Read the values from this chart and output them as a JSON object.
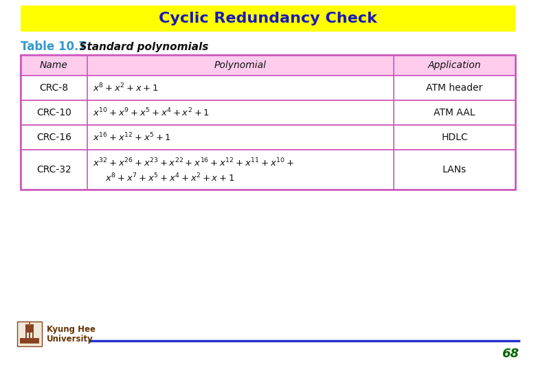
{
  "title": "Cyclic Redundancy Check",
  "title_color": "#1a1ab8",
  "title_bg": "#ffff00",
  "table_caption": "Table 10.7",
  "table_caption_color": "#3399cc",
  "table_subtitle": "  Standard polynomials",
  "header_bg": "#ffccee",
  "header_border": "#cc55bb",
  "names": [
    "CRC-8",
    "CRC-10",
    "CRC-16",
    "CRC-32"
  ],
  "poly_line1": [
    "$x^{8}+x^{2}+x+1$",
    "$x^{10}+x^{9}+x^{5}+x^{4}+x^{2}+1$",
    "$x^{16}+x^{12}+x^{5}+1$",
    "$x^{32}+x^{26}+x^{23}+x^{22}+x^{16}+x^{12}+x^{11}+x^{10}+$"
  ],
  "poly_line2": [
    "",
    "",
    "",
    "$x^{8}+x^{7}+x^{5}+x^{4}+x^{2}+x+1$"
  ],
  "applications": [
    "ATM header",
    "ATM AAL",
    "HDLC",
    "LANs"
  ],
  "footer_line_color": "#2233cc",
  "page_number": "68",
  "page_number_color": "#006600"
}
